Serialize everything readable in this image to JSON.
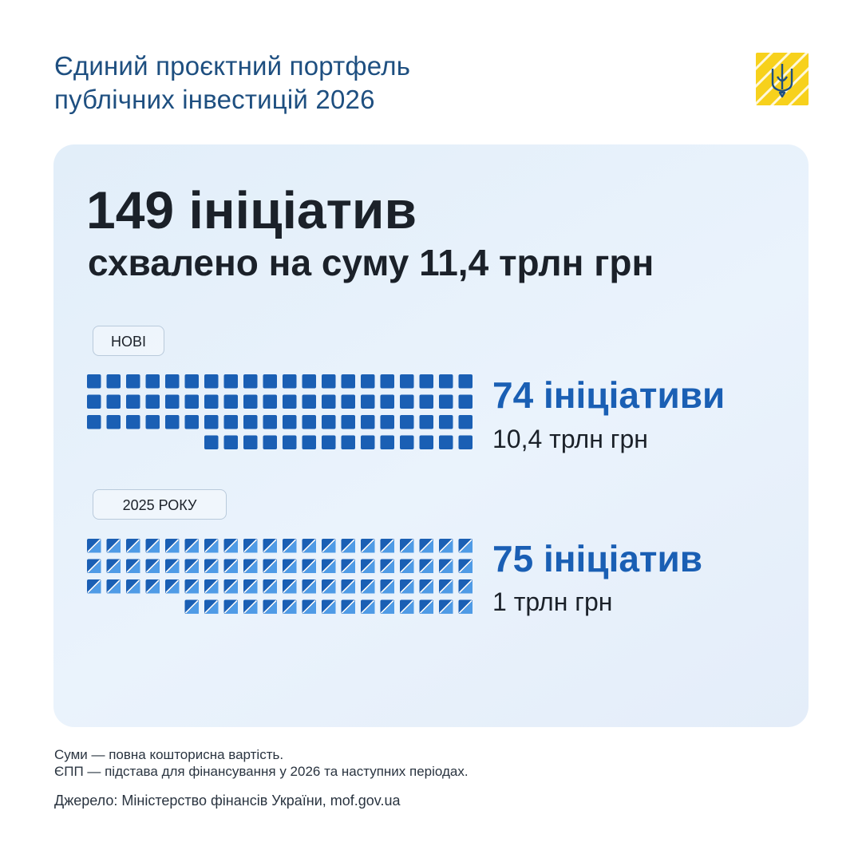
{
  "title": {
    "line1": "Єдиний проєктний портфель",
    "line2": "публічних інвестицій 2026"
  },
  "headline": "149 ініціатив",
  "subheadline": "схвалено на суму 11,4 трлн грн",
  "groups": [
    {
      "label": "НОВІ",
      "count": 74,
      "count_text": "74 ініціативи",
      "amount_text": "10,4 трлн грн",
      "square_color": "#1a5fb4",
      "style": "solid"
    },
    {
      "label": "2025 РОКУ",
      "count": 75,
      "count_text": "75 ініціатив",
      "amount_text": "1 трлн грн",
      "square_color": "#1a5fb4",
      "style": "split-diagonal"
    }
  ],
  "footnotes": [
    "Суми — повна кошторисна вартість.",
    "ЄПП — підстава для фінансування у 2026 та наступних періодах."
  ],
  "source": "Джерело: Міністерство фінансів України, mof.gov.ua",
  "colors": {
    "accent": "#1a5fb4",
    "title": "#1e4f80",
    "emblem_bg": "#f7d11c",
    "card_bg": "#e6f0fb"
  },
  "icons": {
    "emblem": "trident-emblem-icon"
  }
}
